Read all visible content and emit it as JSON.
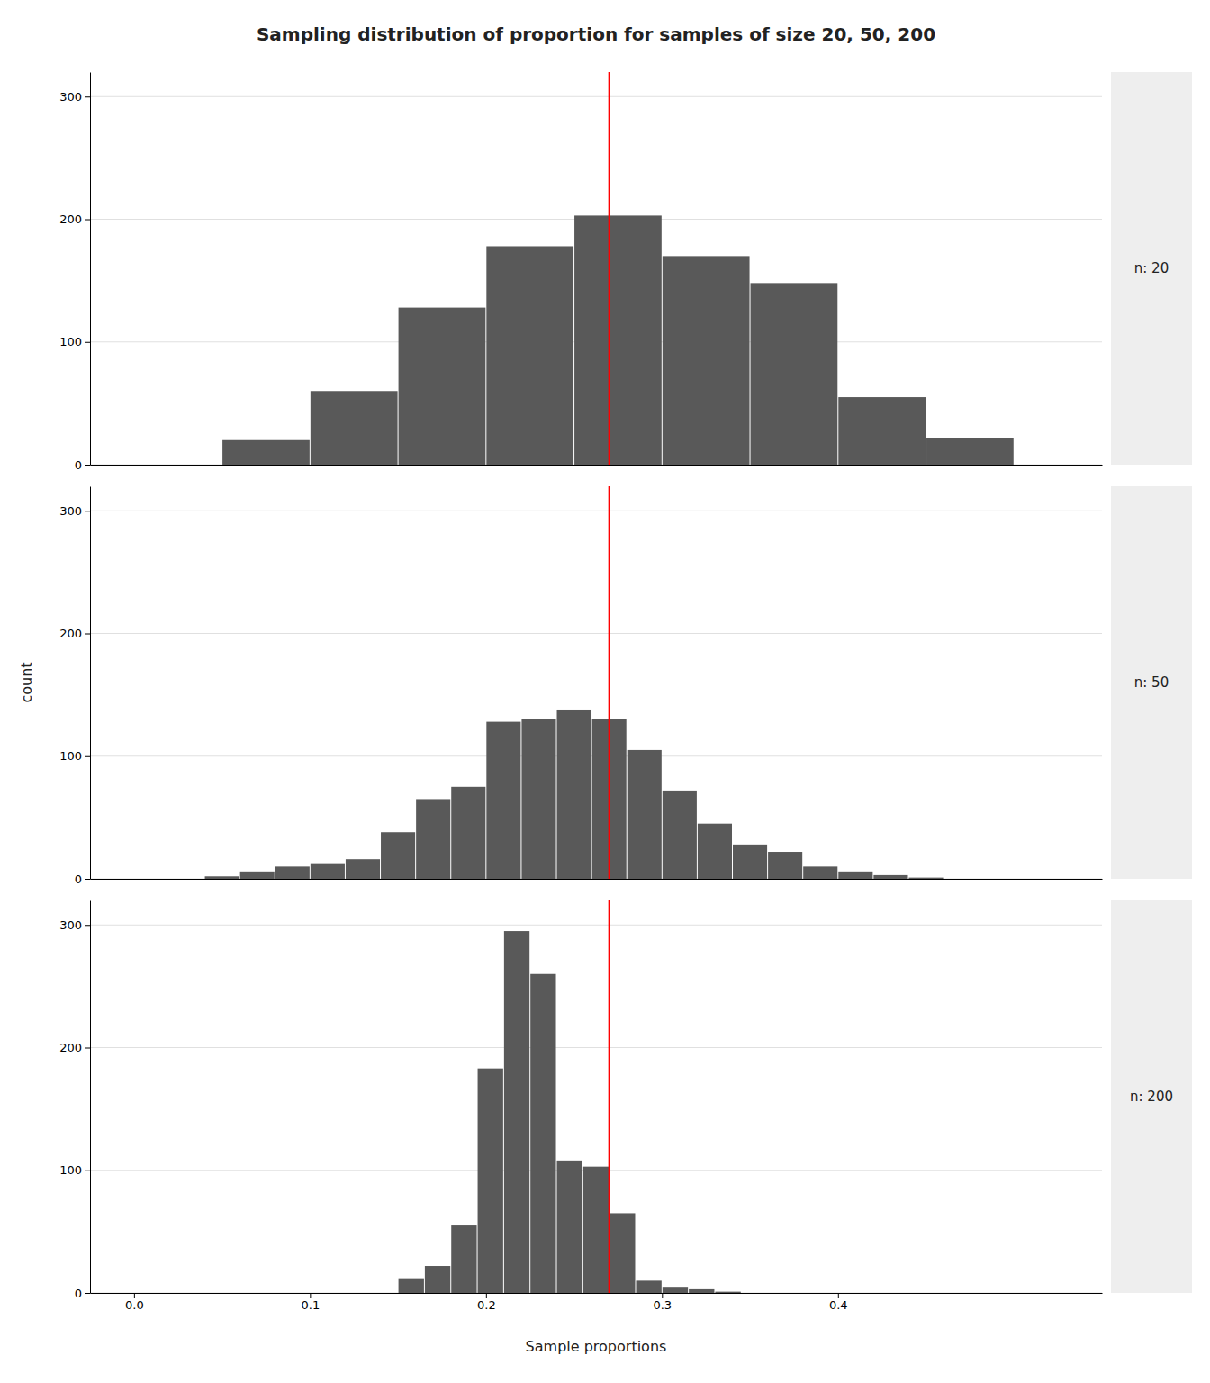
{
  "chart_data": {
    "type": "histogram",
    "title": "Sampling distribution of proportion for samples of size 20, 50, 200",
    "xlabel": "Sample proportions",
    "ylabel": "count",
    "xlim": [
      -0.025,
      0.55
    ],
    "ylim": [
      0,
      320
    ],
    "xticks": [
      {
        "value": 0.0,
        "label": "0.0"
      },
      0.1,
      0.2,
      0.3,
      0.4
    ],
    "yticks": [
      0,
      100,
      200,
      300
    ],
    "grid": "y",
    "vline": {
      "x": 0.27,
      "color": "red"
    },
    "series": [
      {
        "name": "n: 20",
        "color": "#595959",
        "bins": [
          0.05,
          0.1,
          0.15,
          0.2,
          0.25,
          0.3,
          0.35,
          0.4,
          0.45,
          0.5
        ],
        "values": [
          20,
          60,
          128,
          178,
          203,
          170,
          148,
          55,
          22
        ]
      },
      {
        "name": "n: 50",
        "color": "#595959",
        "bins": [
          0.04,
          0.06,
          0.08,
          0.1,
          0.12,
          0.14,
          0.16,
          0.18,
          0.2,
          0.22,
          0.24,
          0.26,
          0.28,
          0.3,
          0.32,
          0.34,
          0.36,
          0.38,
          0.4,
          0.42,
          0.44,
          0.46
        ],
        "values": [
          2,
          6,
          10,
          12,
          16,
          38,
          65,
          75,
          128,
          130,
          138,
          130,
          105,
          72,
          45,
          28,
          22,
          10,
          6,
          3,
          1
        ]
      },
      {
        "name": "n: 200",
        "color": "#595959",
        "bins": [
          0.15,
          0.165,
          0.18,
          0.195,
          0.21,
          0.225,
          0.24,
          0.255,
          0.27,
          0.285,
          0.3,
          0.315,
          0.33,
          0.345
        ],
        "values": [
          12,
          22,
          55,
          183,
          295,
          260,
          108,
          103,
          65,
          10,
          5,
          3,
          1
        ]
      }
    ]
  }
}
